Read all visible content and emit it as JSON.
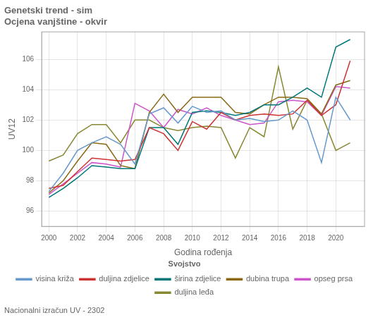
{
  "chart_data": {
    "type": "line",
    "title": "Genetski trend - sim",
    "subtitle": "Ocjena vanjštine - okvir",
    "x_label": "Godina rođenja",
    "y_label": "UV12",
    "footnote": "Nacionalni izračun UV - 2302",
    "legend_title": "Svojstvo",
    "legend": "bottom",
    "grid": true,
    "xlim": [
      1999.5,
      2022.0
    ],
    "ylim": [
      95.0,
      107.8
    ],
    "xticks": [
      2000,
      2002,
      2004,
      2006,
      2008,
      2010,
      2012,
      2014,
      2016,
      2018,
      2020
    ],
    "yticks": [
      96,
      98,
      100,
      102,
      104,
      106
    ],
    "x": [
      2000,
      2001,
      2002,
      2003,
      2004,
      2005,
      2006,
      2007,
      2008,
      2009,
      2010,
      2011,
      2012,
      2013,
      2014,
      2015,
      2016,
      2017,
      2018,
      2019,
      2020,
      2021
    ],
    "series": [
      {
        "name": "visina križa",
        "color": "#6699CC",
        "values": [
          97.3,
          98.5,
          100.0,
          100.5,
          100.9,
          100.4,
          99.1,
          102.4,
          102.8,
          101.8,
          102.9,
          102.5,
          102.6,
          102.0,
          102.1,
          101.9,
          102.0,
          102.6,
          102.0,
          99.2,
          103.5,
          102.0
        ]
      },
      {
        "name": "duljina zdjelice",
        "color": "#CC3333",
        "values": [
          97.5,
          97.7,
          98.6,
          99.5,
          99.4,
          99.3,
          99.4,
          101.5,
          101.1,
          100.0,
          101.9,
          101.4,
          102.5,
          102.0,
          102.3,
          102.4,
          102.3,
          102.4,
          103.3,
          102.3,
          103.0,
          105.9
        ]
      },
      {
        "name": "širina zdjelice",
        "color": "#007777",
        "values": [
          96.9,
          97.5,
          98.2,
          99.0,
          98.9,
          98.8,
          98.8,
          101.5,
          101.5,
          100.4,
          102.5,
          102.6,
          102.5,
          102.3,
          102.5,
          103.0,
          103.0,
          103.5,
          104.1,
          103.5,
          106.8,
          107.3
        ]
      },
      {
        "name": "dubina trupa",
        "color": "#8B6914",
        "values": [
          97.2,
          98.0,
          99.3,
          100.5,
          100.4,
          99.0,
          98.8,
          102.5,
          103.7,
          102.5,
          103.5,
          103.5,
          103.5,
          102.5,
          102.4,
          103.0,
          103.5,
          103.5,
          103.4,
          102.4,
          104.3,
          104.6
        ]
      },
      {
        "name": "opseg prsa",
        "color": "#CC55CC",
        "values": [
          97.1,
          97.8,
          98.5,
          99.2,
          99.1,
          98.9,
          103.1,
          102.6,
          101.5,
          102.7,
          102.4,
          102.8,
          102.3,
          102.0,
          101.7,
          101.8,
          103.2,
          103.3,
          103.2,
          102.3,
          104.2,
          104.1
        ]
      },
      {
        "name": "duljina leđa",
        "color": "#888833",
        "values": [
          99.3,
          99.7,
          101.1,
          101.7,
          101.7,
          100.5,
          102.0,
          102.0,
          101.5,
          101.3,
          101.5,
          101.6,
          101.5,
          99.5,
          101.5,
          100.9,
          105.5,
          101.4,
          103.3,
          102.4,
          100.0,
          100.5
        ]
      }
    ]
  }
}
